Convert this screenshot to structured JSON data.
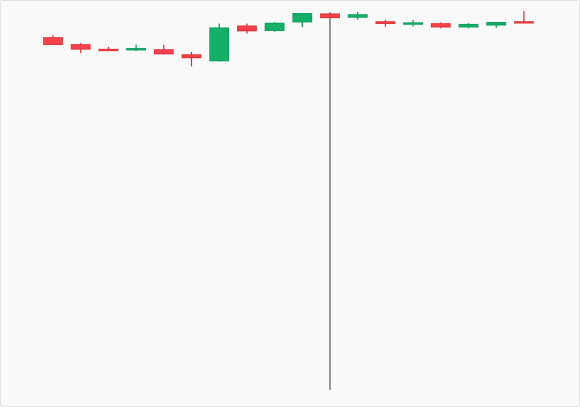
{
  "chart_data": {
    "type": "candlestick",
    "title": "",
    "xlabel": "",
    "ylabel": "",
    "grid": false,
    "legend": "none",
    "ylim": [
      0,
      100
    ],
    "colors": {
      "up": "#14b06a",
      "down": "#f4414b",
      "up_edge": "#0e9a5c",
      "down_edge": "#d93038",
      "background": "#fafafa"
    },
    "candles": [
      {
        "open": 90.6,
        "high": 91.2,
        "low": 88.8,
        "close": 88.8
      },
      {
        "open": 88.8,
        "high": 89.2,
        "low": 86.6,
        "close": 87.6
      },
      {
        "open": 87.6,
        "high": 88.2,
        "low": 87.3,
        "close": 87.4
      },
      {
        "open": 87.4,
        "high": 88.8,
        "low": 87.1,
        "close": 87.8
      },
      {
        "open": 87.5,
        "high": 88.8,
        "low": 86.2,
        "close": 86.4
      },
      {
        "open": 86.2,
        "high": 86.9,
        "low": 83.2,
        "close": 85.4
      },
      {
        "open": 84.6,
        "high": 94.2,
        "low": 84.4,
        "close": 93.1
      },
      {
        "open": 93.6,
        "high": 94.2,
        "low": 91.6,
        "close": 92.3
      },
      {
        "open": 92.4,
        "high": 94.6,
        "low": 92.1,
        "close": 94.3
      },
      {
        "open": 94.6,
        "high": 96.8,
        "low": 93.3,
        "close": 96.8
      },
      {
        "open": 96.7,
        "high": 97.1,
        "low": 0.0,
        "close": 95.7
      },
      {
        "open": 95.8,
        "high": 97.2,
        "low": 95.2,
        "close": 96.5
      },
      {
        "open": 94.7,
        "high": 95.1,
        "low": 93.4,
        "close": 94.2
      },
      {
        "open": 94.0,
        "high": 95.1,
        "low": 93.4,
        "close": 94.4
      },
      {
        "open": 94.2,
        "high": 94.5,
        "low": 93.0,
        "close": 93.3
      },
      {
        "open": 93.3,
        "high": 94.3,
        "low": 93.0,
        "close": 94.0
      },
      {
        "open": 93.8,
        "high": 94.6,
        "low": 93.1,
        "close": 94.5
      },
      {
        "open": 94.7,
        "high": 97.4,
        "low": 94.6,
        "close": 94.6
      }
    ]
  }
}
